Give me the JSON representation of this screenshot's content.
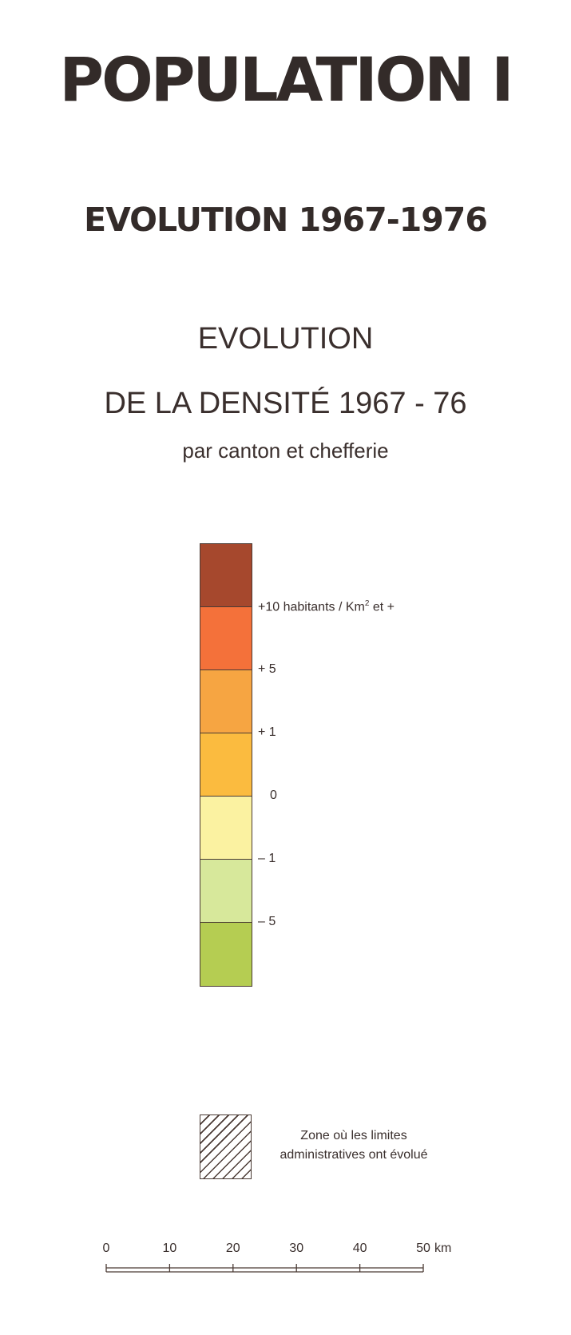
{
  "titles": {
    "main": "POPULATION I",
    "sub": "EVOLUTION 1967-1976"
  },
  "map": {
    "title_line1": "EVOLUTION",
    "title_line2": "DE LA DENSITÉ  1967 - 76",
    "subtitle": "par canton et chefferie"
  },
  "legend": {
    "classes": [
      {
        "color": "#a6482d"
      },
      {
        "color": "#f4713a"
      },
      {
        "color": "#f6a542"
      },
      {
        "color": "#fbbb3f"
      },
      {
        "color": "#fbf2a1"
      },
      {
        "color": "#d7e89b"
      },
      {
        "color": "#b5cd52"
      }
    ],
    "thresholds": [
      "+10 habitants / Km",
      "+ 5",
      "+ 1",
      "0",
      "– 1",
      "– 5"
    ],
    "unit_superscript": "2",
    "unit_suffix": " et +"
  },
  "hatch_legend": {
    "line1": "Zone où les limites",
    "line2": "administratives ont évolué"
  },
  "scale_bar": {
    "ticks": [
      "0",
      "10",
      "20",
      "30",
      "40",
      "50"
    ],
    "unit": "km"
  }
}
